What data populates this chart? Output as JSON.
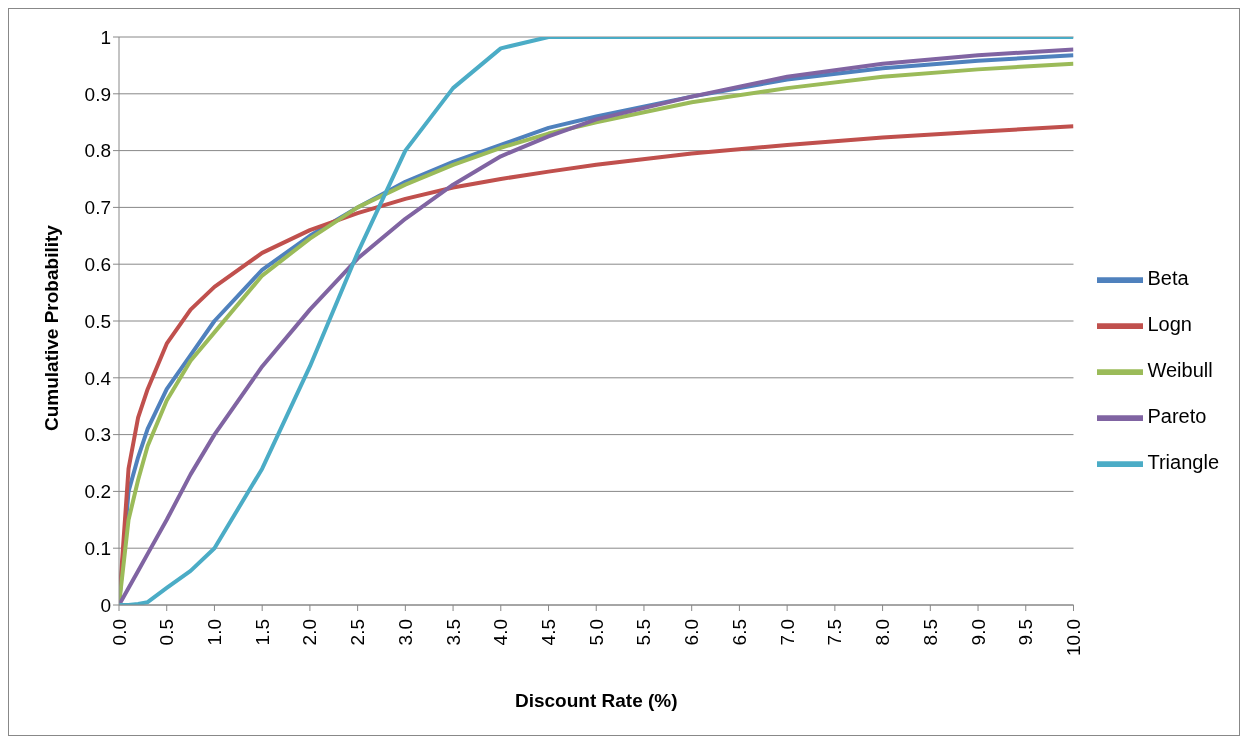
{
  "chart_data": {
    "type": "line",
    "xlabel": "Discount Rate (%)",
    "ylabel": "Cumulative Probability",
    "x": [
      0,
      0.1,
      0.2,
      0.3,
      0.5,
      0.75,
      1,
      1.5,
      2,
      2.5,
      3,
      3.5,
      4,
      4.5,
      5,
      6,
      7,
      8,
      9,
      10
    ],
    "series": [
      {
        "name": "Beta",
        "color": "#4f81bd",
        "values": [
          0,
          0.2,
          0.26,
          0.31,
          0.38,
          0.44,
          0.5,
          0.59,
          0.65,
          0.7,
          0.745,
          0.78,
          0.81,
          0.84,
          0.86,
          0.895,
          0.925,
          0.945,
          0.958,
          0.968
        ]
      },
      {
        "name": "Logn",
        "color": "#c0504d",
        "values": [
          0,
          0.24,
          0.33,
          0.38,
          0.46,
          0.52,
          0.56,
          0.62,
          0.66,
          0.69,
          0.715,
          0.735,
          0.75,
          0.763,
          0.775,
          0.795,
          0.81,
          0.823,
          0.833,
          0.843
        ]
      },
      {
        "name": "Weibull",
        "color": "#9bbb59",
        "values": [
          0,
          0.15,
          0.22,
          0.28,
          0.36,
          0.43,
          0.48,
          0.58,
          0.645,
          0.7,
          0.74,
          0.775,
          0.805,
          0.83,
          0.85,
          0.885,
          0.91,
          0.93,
          0.943,
          0.953
        ]
      },
      {
        "name": "Pareto",
        "color": "#8064a2",
        "values": [
          0,
          0.03,
          0.06,
          0.09,
          0.15,
          0.23,
          0.3,
          0.42,
          0.52,
          0.61,
          0.68,
          0.74,
          0.79,
          0.825,
          0.855,
          0.895,
          0.93,
          0.953,
          0.968,
          0.978
        ]
      },
      {
        "name": "Triangle",
        "color": "#4bacc6",
        "values": [
          0,
          0,
          0.002,
          0.005,
          0.03,
          0.06,
          0.1,
          0.24,
          0.42,
          0.62,
          0.8,
          0.91,
          0.98,
          1,
          1,
          1,
          1,
          1,
          1,
          1
        ]
      }
    ],
    "xlim": [
      0,
      10
    ],
    "xticks": [
      {
        "value": 0,
        "label": "0.0"
      },
      {
        "value": 0.5,
        "label": "0.5"
      },
      {
        "value": 1,
        "label": "1.0"
      },
      {
        "value": 1.5,
        "label": "1.5"
      },
      {
        "value": 2,
        "label": "2.0"
      },
      {
        "value": 2.5,
        "label": "2.5"
      },
      {
        "value": 3,
        "label": "3.0"
      },
      {
        "value": 3.5,
        "label": "3.5"
      },
      {
        "value": 4,
        "label": "4.0"
      },
      {
        "value": 4.5,
        "label": "4.5"
      },
      {
        "value": 5,
        "label": "5.0"
      },
      {
        "value": 5.5,
        "label": "5.5"
      },
      {
        "value": 6,
        "label": "6.0"
      },
      {
        "value": 6.5,
        "label": "6.5"
      },
      {
        "value": 7,
        "label": "7.0"
      },
      {
        "value": 7.5,
        "label": "7.5"
      },
      {
        "value": 8,
        "label": "8.0"
      },
      {
        "value": 8.5,
        "label": "8.5"
      },
      {
        "value": 9,
        "label": "9.0"
      },
      {
        "value": 9.5,
        "label": "9.5"
      },
      {
        "value": 10,
        "label": "10.0"
      }
    ],
    "ylim": [
      0,
      1
    ],
    "yticks": [
      0,
      0.1,
      0.2,
      0.3,
      0.4,
      0.5,
      0.6,
      0.7,
      0.8,
      0.9,
      1
    ],
    "grid": "y",
    "legend": "right",
    "marker": "none",
    "line_style": "solid"
  }
}
